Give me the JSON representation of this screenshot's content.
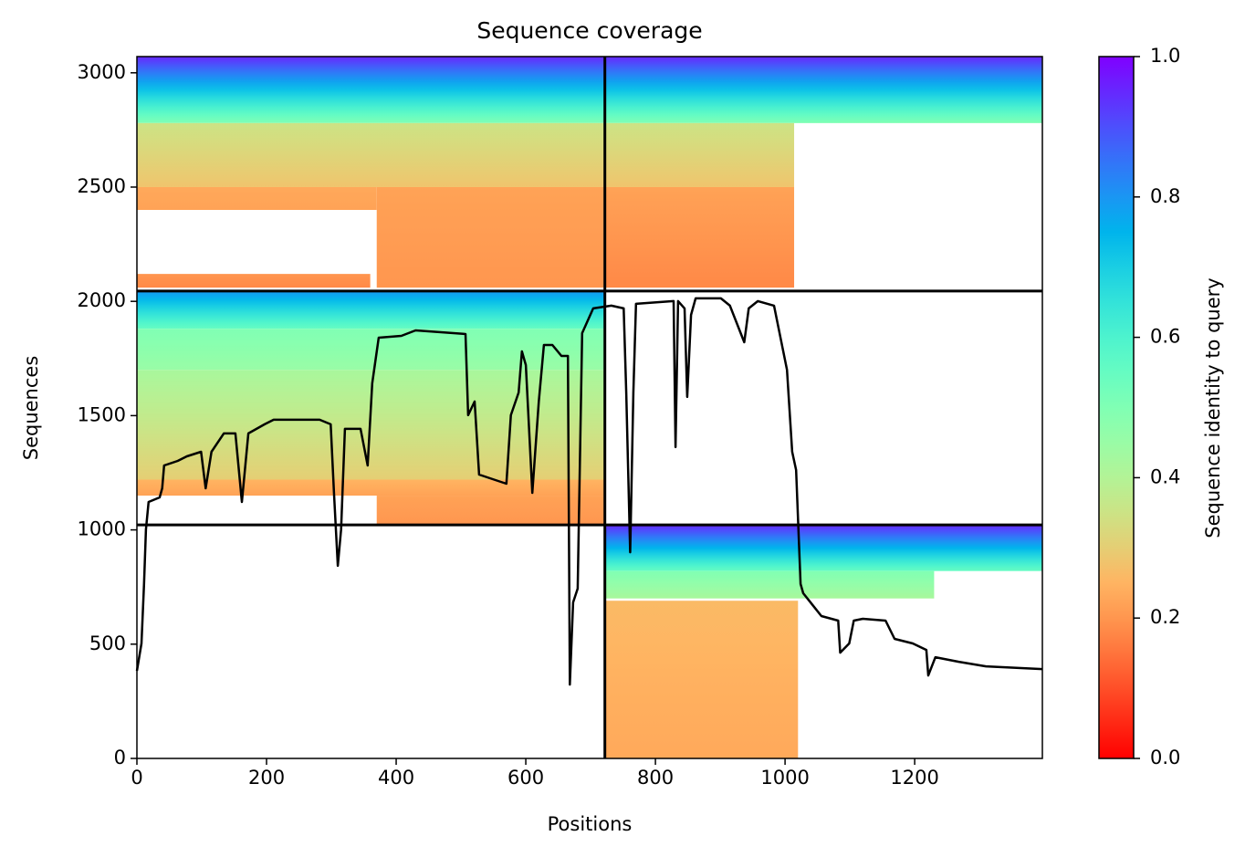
{
  "chart_data": {
    "type": "coverage",
    "title": "Sequence coverage",
    "xlabel": "Positions",
    "ylabel": "Sequences",
    "xlim": [
      0,
      1397
    ],
    "ylim": [
      0,
      3071
    ],
    "xticks": [
      0,
      200,
      400,
      600,
      800,
      1000,
      1200
    ],
    "yticks": [
      0,
      500,
      1000,
      1500,
      2000,
      2500,
      3000
    ],
    "colormap": "rainbow_r",
    "colorbar": {
      "label": "Sequence identity to query",
      "clim": [
        0,
        1
      ],
      "ticks": [
        {
          "value": 0,
          "label": "0.0"
        },
        0.2,
        0.4,
        0.6,
        0.8,
        {
          "value": 1,
          "label": "1.0"
        }
      ]
    },
    "bands": [
      {
        "x": [
          0,
          722
        ],
        "y": [
          2780,
          3071
        ],
        "identity": [
          0.95,
          0.5
        ]
      },
      {
        "x": [
          0,
          722
        ],
        "y": [
          2500,
          2780
        ],
        "identity": [
          0.35,
          0.28
        ]
      },
      {
        "x": [
          370,
          722
        ],
        "y": [
          2060,
          2500
        ],
        "identity": [
          0.22,
          0.2
        ]
      },
      {
        "x": [
          0,
          370
        ],
        "y": [
          2400,
          2500
        ],
        "identity": [
          0.23,
          0.22
        ]
      },
      {
        "x": [
          0,
          360
        ],
        "y": [
          2060,
          2120
        ],
        "identity": [
          0.2,
          0.18
        ]
      },
      {
        "x": [
          722,
          1397
        ],
        "y": [
          2780,
          3071
        ],
        "identity": [
          0.95,
          0.5
        ]
      },
      {
        "x": [
          722,
          1014
        ],
        "y": [
          2500,
          2780
        ],
        "identity": [
          0.35,
          0.28
        ]
      },
      {
        "x": [
          722,
          1014
        ],
        "y": [
          2060,
          2500
        ],
        "identity": [
          0.22,
          0.18
        ]
      },
      {
        "x": [
          0,
          722
        ],
        "y": [
          1880,
          2045
        ],
        "identity": [
          0.8,
          0.55
        ]
      },
      {
        "x": [
          0,
          722
        ],
        "y": [
          1700,
          1880
        ],
        "identity": [
          0.5,
          0.45
        ]
      },
      {
        "x": [
          0,
          722
        ],
        "y": [
          1220,
          1700
        ],
        "identity": [
          0.42,
          0.3
        ]
      },
      {
        "x": [
          0,
          722
        ],
        "y": [
          1150,
          1220
        ],
        "identity": [
          0.25,
          0.22
        ]
      },
      {
        "x": [
          370,
          722
        ],
        "y": [
          1022,
          1150
        ],
        "identity": [
          0.22,
          0.2
        ]
      },
      {
        "x": [
          722,
          1397
        ],
        "y": [
          820,
          1022
        ],
        "identity": [
          0.95,
          0.55
        ]
      },
      {
        "x": [
          722,
          1230
        ],
        "y": [
          700,
          820
        ],
        "identity": [
          0.5,
          0.42
        ]
      },
      {
        "x": [
          722,
          1020
        ],
        "y": [
          0,
          690
        ],
        "identity": [
          0.26,
          0.23
        ]
      }
    ],
    "dividers": {
      "x": [
        722
      ],
      "y": [
        1022,
        2045
      ]
    },
    "coverage": {
      "color": "#000000",
      "x": [
        0,
        7,
        11,
        14,
        18,
        35,
        39,
        42,
        63,
        77,
        99,
        106,
        115,
        134,
        152,
        162,
        172,
        197,
        211,
        282,
        299,
        304,
        310,
        315,
        321,
        345,
        356,
        363,
        373,
        408,
        430,
        507,
        511,
        521,
        528,
        549,
        570,
        577,
        589,
        594,
        600,
        610,
        620,
        628,
        641,
        655,
        665,
        668,
        673,
        680,
        687,
        704,
        732,
        751,
        755,
        761,
        766,
        770,
        828,
        831,
        835,
        845,
        849,
        855,
        862,
        901,
        915,
        937,
        944,
        958,
        983,
        1003,
        1011,
        1017,
        1024,
        1028,
        1056,
        1082,
        1085,
        1099,
        1106,
        1120,
        1155,
        1169,
        1197,
        1218,
        1221,
        1232,
        1268,
        1310,
        1397
      ],
      "values": [
        383,
        503,
        763,
        1002,
        1122,
        1142,
        1182,
        1282,
        1302,
        1322,
        1342,
        1182,
        1342,
        1422,
        1422,
        1122,
        1422,
        1462,
        1482,
        1482,
        1462,
        1162,
        843,
        1002,
        1442,
        1442,
        1282,
        1641,
        1841,
        1849,
        1873,
        1857,
        1502,
        1562,
        1242,
        1222,
        1202,
        1502,
        1601,
        1781,
        1721,
        1162,
        1562,
        1809,
        1809,
        1761,
        1761,
        323,
        683,
        743,
        1861,
        1969,
        1981,
        1969,
        1601,
        902,
        1601,
        1989,
        2001,
        1362,
        2001,
        1969,
        1582,
        1941,
        2013,
        2013,
        1981,
        1821,
        1969,
        2001,
        1981,
        1701,
        1342,
        1262,
        763,
        723,
        623,
        603,
        463,
        503,
        603,
        611,
        603,
        523,
        503,
        475,
        363,
        443,
        423,
        403,
        391
      ]
    }
  }
}
